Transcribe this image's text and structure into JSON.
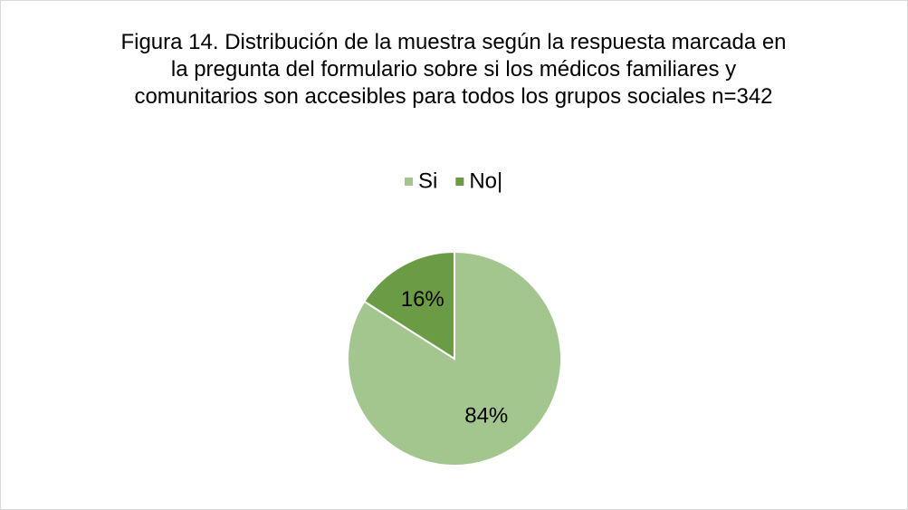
{
  "chart_data": {
    "type": "pie",
    "title": "Figura 14. Distribución de la muestra según la respuesta marcada en la pregunta del formulario sobre si los médicos familiares y comunitarios son accesibles para todos los grupos sociales n=342",
    "categories": [
      "Si",
      "No|"
    ],
    "values": [
      84,
      16
    ],
    "value_labels": [
      "84%",
      "16%"
    ],
    "colors": [
      "#a3c68f",
      "#6b9c45"
    ],
    "legend": "top"
  }
}
